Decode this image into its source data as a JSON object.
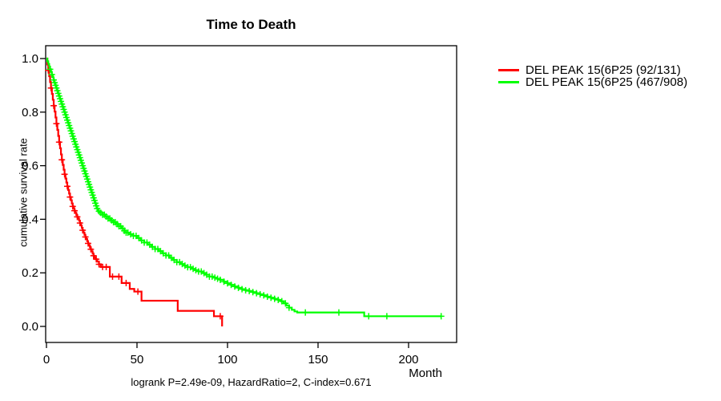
{
  "chart_data": {
    "type": "line",
    "subtype": "kaplan-meier-step",
    "title": "Time to Death",
    "xlabel": "Month",
    "ylabel": "cumulative survival rate",
    "footnote": "logrank P=2.49e-09, HazardRatio=2, C-index=0.671",
    "xlim": [
      0,
      226
    ],
    "ylim": [
      0,
      1
    ],
    "x_ticks": [
      0,
      50,
      100,
      150,
      200
    ],
    "y_ticks": [
      1.0,
      0.8,
      0.6,
      0.4,
      0.2,
      0.0
    ],
    "grid": false,
    "legend_position": "right-outside",
    "axis_color": "#000000",
    "series": [
      {
        "name": "DEL PEAK 15(6P25 (92/131)",
        "color": "#ff0000",
        "points": [
          [
            0,
            1
          ],
          [
            0.5,
            0.978
          ],
          [
            1,
            0.956
          ],
          [
            1.5,
            0.934
          ],
          [
            2,
            0.912
          ],
          [
            2.5,
            0.89
          ],
          [
            3,
            0.868
          ],
          [
            3.5,
            0.846
          ],
          [
            4,
            0.824
          ],
          [
            4.5,
            0.802
          ],
          [
            5,
            0.78
          ],
          [
            5.5,
            0.757
          ],
          [
            6,
            0.734
          ],
          [
            6.5,
            0.711
          ],
          [
            7,
            0.688
          ],
          [
            7.5,
            0.665
          ],
          [
            8,
            0.642
          ],
          [
            8.5,
            0.622
          ],
          [
            9,
            0.603
          ],
          [
            9.5,
            0.585
          ],
          [
            10,
            0.568
          ],
          [
            10.5,
            0.552
          ],
          [
            11,
            0.537
          ],
          [
            11.5,
            0.523
          ],
          [
            12,
            0.509
          ],
          [
            12.5,
            0.496
          ],
          [
            13,
            0.483
          ],
          [
            13.5,
            0.471
          ],
          [
            14,
            0.459
          ],
          [
            14.5,
            0.448
          ],
          [
            15,
            0.44
          ],
          [
            15.5,
            0.432
          ],
          [
            16,
            0.424
          ],
          [
            16.5,
            0.416
          ],
          [
            17,
            0.409
          ],
          [
            17.5,
            0.402
          ],
          [
            18,
            0.395
          ],
          [
            18.5,
            0.386
          ],
          [
            19,
            0.377
          ],
          [
            19.5,
            0.368
          ],
          [
            20,
            0.359
          ],
          [
            20.5,
            0.35
          ],
          [
            21,
            0.342
          ],
          [
            21.5,
            0.334
          ],
          [
            22,
            0.326
          ],
          [
            22.5,
            0.318
          ],
          [
            23,
            0.31
          ],
          [
            23.5,
            0.302
          ],
          [
            24,
            0.295
          ],
          [
            24.5,
            0.288
          ],
          [
            25,
            0.28
          ],
          [
            25.5,
            0.272
          ],
          [
            26,
            0.264
          ],
          [
            26.5,
            0.257
          ],
          [
            27,
            0.251
          ],
          [
            28,
            0.242
          ],
          [
            29,
            0.232
          ],
          [
            30,
            0.222
          ],
          [
            35,
            0.186
          ],
          [
            41.5,
            0.162
          ],
          [
            46,
            0.14
          ],
          [
            48.5,
            0.13
          ],
          [
            52.5,
            0.096
          ],
          [
            72.5,
            0.058
          ],
          [
            92.5,
            0.038
          ],
          [
            97,
            0
          ]
        ],
        "censor_months": [
          1,
          2.5,
          4,
          5.5,
          7,
          8.5,
          10,
          11.5,
          13,
          14.5,
          15.5,
          17,
          18.5,
          20,
          21.5,
          23,
          24.5,
          26,
          27.5,
          29,
          31,
          33,
          36.5,
          40,
          44,
          50.5,
          96
        ]
      },
      {
        "name": "DEL PEAK 15(6P25 (467/908)",
        "color": "#00ff00",
        "points": [
          [
            0,
            1
          ],
          [
            0.5,
            0.99
          ],
          [
            1,
            0.98
          ],
          [
            1.5,
            0.97
          ],
          [
            2,
            0.96
          ],
          [
            2.5,
            0.95
          ],
          [
            3,
            0.94
          ],
          [
            3.5,
            0.93
          ],
          [
            4,
            0.92
          ],
          [
            4.5,
            0.91
          ],
          [
            5,
            0.9
          ],
          [
            5.5,
            0.89
          ],
          [
            6,
            0.88
          ],
          [
            6.5,
            0.87
          ],
          [
            7,
            0.86
          ],
          [
            7.5,
            0.85
          ],
          [
            8,
            0.84
          ],
          [
            8.5,
            0.83
          ],
          [
            9,
            0.82
          ],
          [
            9.5,
            0.81
          ],
          [
            10,
            0.8
          ],
          [
            10.5,
            0.79
          ],
          [
            11,
            0.78
          ],
          [
            11.5,
            0.77
          ],
          [
            12,
            0.76
          ],
          [
            12.5,
            0.75
          ],
          [
            13,
            0.74
          ],
          [
            13.5,
            0.73
          ],
          [
            14,
            0.72
          ],
          [
            14.5,
            0.71
          ],
          [
            15,
            0.7
          ],
          [
            15.5,
            0.69
          ],
          [
            16,
            0.68
          ],
          [
            16.5,
            0.67
          ],
          [
            17,
            0.66
          ],
          [
            17.5,
            0.65
          ],
          [
            18,
            0.64
          ],
          [
            18.5,
            0.63
          ],
          [
            19,
            0.62
          ],
          [
            19.5,
            0.61
          ],
          [
            20,
            0.6
          ],
          [
            20.5,
            0.59
          ],
          [
            21,
            0.58
          ],
          [
            21.5,
            0.57
          ],
          [
            22,
            0.56
          ],
          [
            22.5,
            0.55
          ],
          [
            23,
            0.54
          ],
          [
            23.5,
            0.53
          ],
          [
            24,
            0.52
          ],
          [
            24.5,
            0.51
          ],
          [
            25,
            0.5
          ],
          [
            25.5,
            0.49
          ],
          [
            26,
            0.48
          ],
          [
            26.5,
            0.47
          ],
          [
            27,
            0.46
          ],
          [
            27.5,
            0.45
          ],
          [
            28,
            0.44
          ],
          [
            28.5,
            0.43
          ],
          [
            29.5,
            0.424
          ],
          [
            31,
            0.417
          ],
          [
            32.5,
            0.41
          ],
          [
            34,
            0.403
          ],
          [
            35.5,
            0.396
          ],
          [
            37,
            0.389
          ],
          [
            38.5,
            0.382
          ],
          [
            40,
            0.374
          ],
          [
            41.5,
            0.366
          ],
          [
            43,
            0.357
          ],
          [
            44,
            0.35
          ],
          [
            46,
            0.344
          ],
          [
            48,
            0.338
          ],
          [
            50,
            0.33
          ],
          [
            52,
            0.321
          ],
          [
            54,
            0.313
          ],
          [
            56,
            0.305
          ],
          [
            58,
            0.297
          ],
          [
            60,
            0.289
          ],
          [
            62,
            0.281
          ],
          [
            64,
            0.273
          ],
          [
            66,
            0.265
          ],
          [
            68,
            0.256
          ],
          [
            70,
            0.248
          ],
          [
            72,
            0.24
          ],
          [
            74,
            0.233
          ],
          [
            76,
            0.227
          ],
          [
            78,
            0.221
          ],
          [
            80,
            0.215
          ],
          [
            82,
            0.21
          ],
          [
            84,
            0.205
          ],
          [
            86,
            0.199
          ],
          [
            88,
            0.193
          ],
          [
            90,
            0.186
          ],
          [
            92,
            0.182
          ],
          [
            94,
            0.178
          ],
          [
            96,
            0.174
          ],
          [
            98,
            0.167
          ],
          [
            100,
            0.161
          ],
          [
            102,
            0.155
          ],
          [
            104,
            0.149
          ],
          [
            106,
            0.144
          ],
          [
            108,
            0.139
          ],
          [
            110,
            0.135
          ],
          [
            112,
            0.132
          ],
          [
            114,
            0.128
          ],
          [
            116,
            0.124
          ],
          [
            118,
            0.12
          ],
          [
            120,
            0.116
          ],
          [
            122,
            0.111
          ],
          [
            124,
            0.107
          ],
          [
            126,
            0.103
          ],
          [
            128,
            0.099
          ],
          [
            129.5,
            0.094
          ],
          [
            131,
            0.086
          ],
          [
            132.5,
            0.078
          ],
          [
            134,
            0.07
          ],
          [
            135.5,
            0.062
          ],
          [
            137,
            0.056
          ],
          [
            138.5,
            0.052
          ],
          [
            175.5,
            0.038
          ],
          [
            218,
            0.038
          ]
        ],
        "censor_months": [
          2,
          3,
          4,
          4.5,
          5,
          5.5,
          6,
          6.5,
          7,
          7.5,
          8,
          8.5,
          9,
          9.5,
          10,
          10.5,
          11,
          11.5,
          12,
          12.5,
          13,
          13.5,
          14,
          14.5,
          15,
          15.5,
          16,
          16.5,
          17,
          17.5,
          18,
          18.5,
          19,
          19.5,
          20,
          20.5,
          21,
          21.5,
          22,
          22.5,
          23,
          23.5,
          24,
          24.5,
          25,
          25.5,
          26,
          26.5,
          27,
          27.5,
          28,
          29,
          30,
          31,
          32,
          33,
          34,
          35,
          36,
          37,
          38,
          39,
          40,
          41,
          42,
          43,
          44,
          45,
          46.5,
          48,
          49.5,
          51,
          52.5,
          54,
          55.5,
          57,
          58.5,
          60,
          61.5,
          63,
          64.5,
          66,
          67.5,
          69,
          70.5,
          72,
          73.5,
          75,
          76.5,
          78,
          79.5,
          81,
          82.5,
          84,
          85.5,
          87,
          88.5,
          90,
          91.5,
          93,
          94.5,
          96,
          98,
          100,
          102,
          104,
          106,
          108,
          110,
          112,
          114,
          116,
          118,
          120,
          122,
          124,
          126,
          128,
          130,
          132,
          134,
          143,
          161.5,
          178,
          188,
          218
        ]
      }
    ]
  }
}
